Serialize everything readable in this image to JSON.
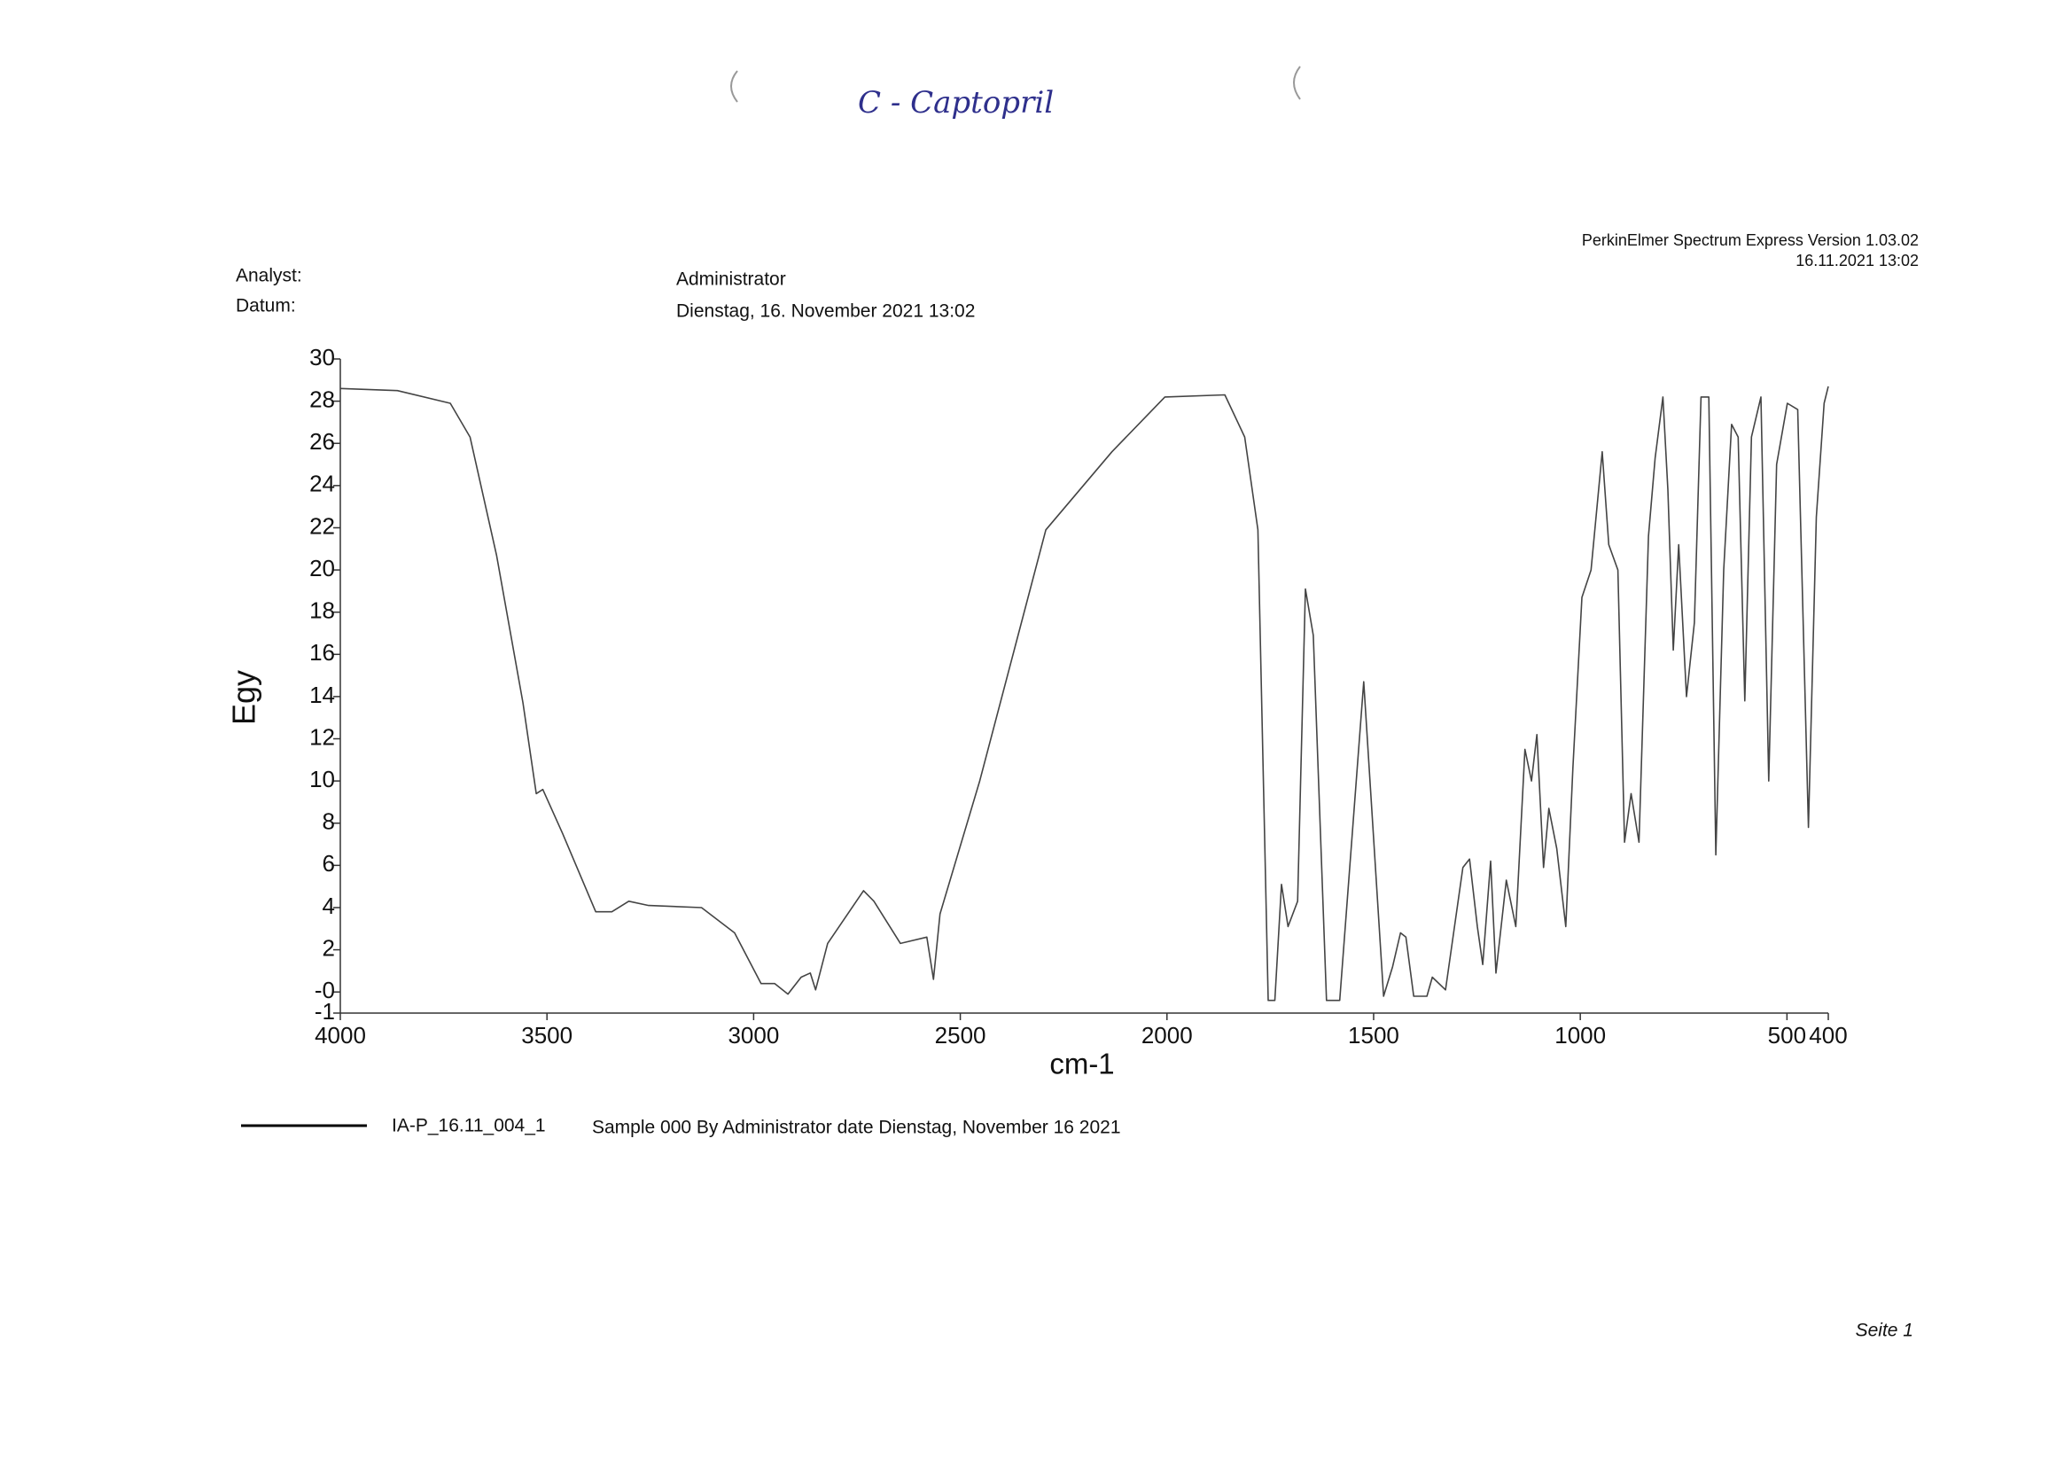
{
  "header": {
    "handwritten_note": "C - Captopril",
    "analyst_label": "Analyst:",
    "analyst": "Administrator",
    "date_label": "Datum:",
    "date": "Dienstag, 16. November 2021 13:02",
    "software": "PerkinElmer Spectrum Express Version 1.03.02",
    "timestamp": "16.11.2021 13:02"
  },
  "chart_data": {
    "type": "line",
    "y_label": "Egy",
    "x_label": "cm-1",
    "xlim": [
      4000,
      400
    ],
    "ylim": [
      -1,
      30
    ],
    "xticks": [
      4000,
      3500,
      3000,
      2500,
      2000,
      1500,
      1000,
      500,
      400
    ],
    "yticks": [
      30,
      28,
      26,
      24,
      22,
      20,
      18,
      16,
      14,
      12,
      10,
      8,
      6,
      4,
      2,
      {
        "value": 0,
        "label": "-0"
      },
      -1
    ],
    "x": [
      4000,
      3862,
      3734,
      3686,
      3622,
      3558,
      3526,
      3510,
      3462,
      3382,
      3343,
      3302,
      3254,
      3126,
      3046,
      2982,
      2949,
      2917,
      2885,
      2863,
      2850,
      2821,
      2734,
      2709,
      2645,
      2581,
      2565,
      2549,
      2453,
      2293,
      2133,
      2005,
      1860,
      1812,
      1780,
      1755,
      1739,
      1723,
      1707,
      1684,
      1665,
      1646,
      1614,
      1582,
      1524,
      1476,
      1454,
      1435,
      1422,
      1403,
      1371,
      1358,
      1326,
      1284,
      1268,
      1249,
      1236,
      1217,
      1204,
      1179,
      1156,
      1134,
      1118,
      1105,
      1089,
      1076,
      1057,
      1035,
      1018,
      996,
      974,
      947,
      931,
      909,
      893,
      877,
      858,
      835,
      819,
      800,
      788,
      775,
      762,
      743,
      724,
      708,
      689,
      672,
      653,
      634,
      618,
      602,
      586,
      563,
      544,
      525,
      499,
      474,
      448,
      429,
      410,
      400
    ],
    "series": [
      {
        "name": "IA-P_16.11_004_1",
        "color": "#444444",
        "values": [
          28.6,
          28.5,
          27.9,
          26.3,
          20.7,
          13.7,
          9.4,
          9.6,
          7.5,
          3.8,
          3.8,
          4.3,
          4.1,
          4.0,
          2.8,
          0.4,
          0.4,
          -0.1,
          0.7,
          0.9,
          0.1,
          2.3,
          4.8,
          4.3,
          2.3,
          2.6,
          0.6,
          3.7,
          10.0,
          21.9,
          25.6,
          28.2,
          28.3,
          26.3,
          21.9,
          -0.4,
          -0.4,
          5.1,
          3.1,
          4.3,
          19.1,
          16.9,
          -0.4,
          -0.4,
          14.7,
          -0.2,
          1.2,
          2.8,
          2.6,
          -0.2,
          -0.2,
          0.7,
          0.1,
          5.9,
          6.3,
          3.1,
          1.3,
          6.2,
          0.9,
          5.3,
          3.1,
          11.5,
          10.0,
          12.2,
          5.9,
          8.7,
          6.8,
          3.1,
          10.6,
          18.7,
          20.0,
          25.6,
          21.2,
          20.0,
          7.1,
          9.4,
          7.1,
          21.6,
          25.3,
          28.2,
          23.8,
          16.2,
          21.2,
          14.0,
          17.5,
          28.2,
          28.2,
          6.5,
          20.0,
          26.9,
          26.3,
          13.8,
          26.3,
          28.2,
          10.0,
          25.0,
          27.9,
          27.6,
          7.8,
          22.5,
          27.9,
          28.7
        ]
      }
    ],
    "legend_description": "Sample 000 By Administrator date Dienstag, November 16 2021"
  },
  "footer": {
    "page": "Seite 1"
  }
}
